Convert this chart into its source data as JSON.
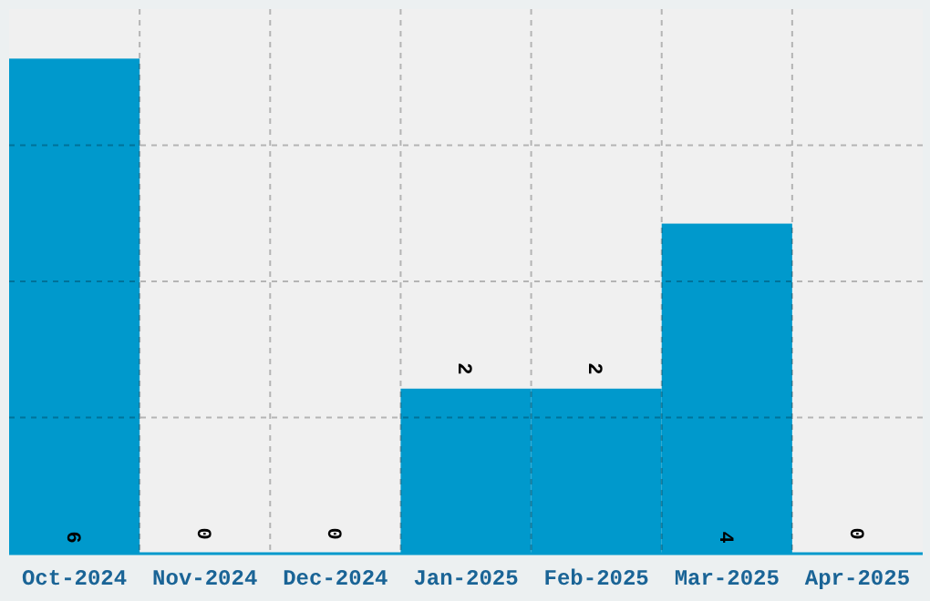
{
  "chart_data": {
    "type": "bar",
    "categories": [
      "Oct-2024",
      "Nov-2024",
      "Dec-2024",
      "Jan-2025",
      "Feb-2025",
      "Mar-2025",
      "Apr-2025"
    ],
    "values": [
      6,
      0,
      0,
      2,
      2,
      4,
      0
    ],
    "color": "#0099cc",
    "ylim": [
      0,
      6.6
    ],
    "yticks": [
      {
        "value": 1.65,
        "label": null
      },
      {
        "value": 3.3,
        "label": null
      },
      {
        "value": 4.95,
        "label": null
      }
    ],
    "grid": true,
    "tick_labels": "x",
    "data_labels": true
  }
}
